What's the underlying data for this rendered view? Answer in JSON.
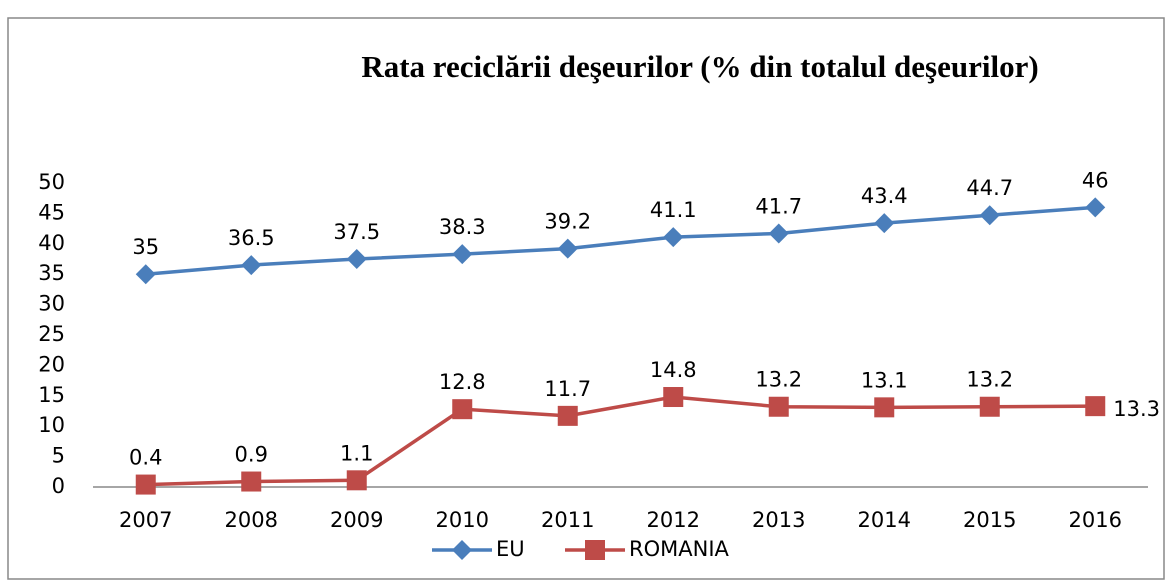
{
  "chart_data": {
    "type": "line",
    "title": "Rata reciclării deşeurilor (% din totalul deşeurilor)",
    "categories": [
      "2007",
      "2008",
      "2009",
      "2010",
      "2011",
      "2012",
      "2013",
      "2014",
      "2015",
      "2016"
    ],
    "series": [
      {
        "name": "EU",
        "color": "#4a7ebb",
        "marker": "diamond",
        "values": [
          35,
          36.5,
          37.5,
          38.3,
          39.2,
          41.1,
          41.7,
          43.4,
          44.7,
          46
        ]
      },
      {
        "name": "ROMANIA",
        "color": "#be4b48",
        "marker": "square",
        "values": [
          0.4,
          0.9,
          1.1,
          12.8,
          11.7,
          14.8,
          13.2,
          13.1,
          13.2,
          13.3
        ]
      }
    ],
    "ylim": [
      0,
      50
    ],
    "yticks": [
      0,
      5,
      10,
      15,
      20,
      25,
      30,
      35,
      40,
      45,
      50
    ],
    "grid": false,
    "legend": "bottom"
  }
}
